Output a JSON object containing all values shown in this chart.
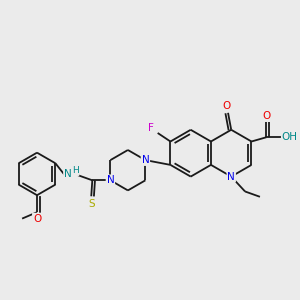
{
  "bg_color": "#ebebeb",
  "bond_color": "#1a1a1a",
  "atom_colors": {
    "N": "#0000ee",
    "O": "#ee0000",
    "F": "#cc00cc",
    "S": "#aaaa00",
    "H": "#008888",
    "C": "#1a1a1a"
  },
  "figsize": [
    3.0,
    3.0
  ],
  "dpi": 100
}
